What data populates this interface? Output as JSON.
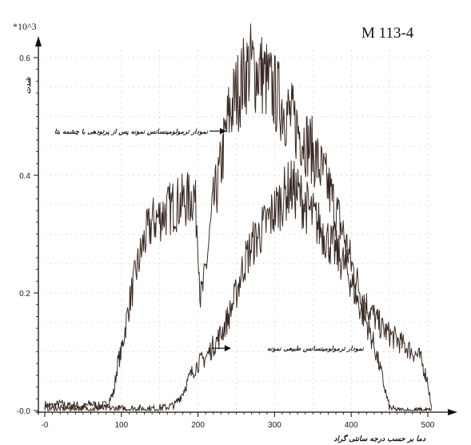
{
  "chart_data": {
    "type": "line",
    "title": "M 113-4",
    "y_scale_label": "*10^3",
    "xlabel": "دما بر حسب درجه سانتی گراد",
    "ylabel": "شدت",
    "xlim": [
      -5,
      510
    ],
    "ylim": [
      -0.005,
      0.62
    ],
    "x_ticks": [
      {
        "value": 0,
        "label": "-0"
      },
      {
        "value": 100,
        "label": "100"
      },
      {
        "value": 200,
        "label": "200"
      },
      {
        "value": 300,
        "label": "300"
      },
      {
        "value": 400,
        "label": "400"
      },
      {
        "value": 500,
        "label": "500"
      }
    ],
    "y_ticks": [
      {
        "value": 0,
        "label": "-0.0"
      },
      {
        "value": 0.2,
        "label": "0.2"
      },
      {
        "value": 0.4,
        "label": "0.4"
      },
      {
        "value": 0.6,
        "label": "0.6"
      }
    ],
    "grid": "dotted",
    "series": [
      {
        "x": [
          0,
          10,
          20,
          30,
          40,
          50,
          60,
          70,
          80,
          90,
          95,
          100,
          110,
          120,
          130,
          140,
          150,
          160,
          170,
          180,
          190,
          195,
          200,
          203,
          207,
          212,
          220,
          228,
          235,
          240,
          245,
          250,
          255,
          260,
          265,
          270,
          275,
          280,
          285,
          290,
          300,
          310,
          320,
          330,
          340,
          350,
          360,
          370,
          380,
          390,
          400,
          410,
          420,
          430,
          440,
          450,
          460,
          470,
          480,
          490,
          500,
          505
        ],
        "values": [
          0.01,
          0.008,
          0.012,
          0.008,
          0.01,
          0.006,
          0.012,
          0.008,
          0.01,
          0.03,
          0.08,
          0.1,
          0.18,
          0.24,
          0.29,
          0.32,
          0.33,
          0.34,
          0.35,
          0.355,
          0.36,
          0.37,
          0.3,
          0.19,
          0.21,
          0.26,
          0.35,
          0.4,
          0.46,
          0.5,
          0.52,
          0.54,
          0.55,
          0.57,
          0.58,
          0.59,
          0.575,
          0.58,
          0.57,
          0.56,
          0.54,
          0.52,
          0.5,
          0.48,
          0.46,
          0.44,
          0.41,
          0.38,
          0.34,
          0.3,
          0.25,
          0.21,
          0.18,
          0.16,
          0.14,
          0.13,
          0.12,
          0.11,
          0.1,
          0.09,
          0.05,
          0.0
        ]
      },
      {
        "x": [
          0,
          20,
          40,
          60,
          80,
          100,
          120,
          140,
          160,
          170,
          180,
          190,
          200,
          210,
          220,
          230,
          240,
          250,
          260,
          270,
          280,
          290,
          300,
          310,
          320,
          330,
          340,
          350,
          360,
          370,
          380,
          390,
          400,
          410,
          420,
          430,
          440,
          445,
          450,
          460,
          480,
          500,
          505
        ],
        "values": [
          0.004,
          0.003,
          0.004,
          0.003,
          0.004,
          0.003,
          0.004,
          0.003,
          0.006,
          0.01,
          0.03,
          0.06,
          0.08,
          0.09,
          0.11,
          0.13,
          0.16,
          0.2,
          0.25,
          0.28,
          0.3,
          0.32,
          0.34,
          0.36,
          0.38,
          0.37,
          0.35,
          0.33,
          0.31,
          0.29,
          0.27,
          0.25,
          0.22,
          0.18,
          0.15,
          0.11,
          0.06,
          0.03,
          0.005,
          0.0,
          0.0,
          0.0,
          0.0
        ]
      }
    ],
    "annotations": [
      {
        "text": "نمودار ترمولومینسانس نمونه پس از پرتودهی با چشمه بتا",
        "arrow_x": 237,
        "arrow_y": 0.475
      },
      {
        "text": "نمودار ترمولومینسانس طبیعی نمونه",
        "arrow_x": 218,
        "arrow_y": 0.106
      }
    ]
  }
}
